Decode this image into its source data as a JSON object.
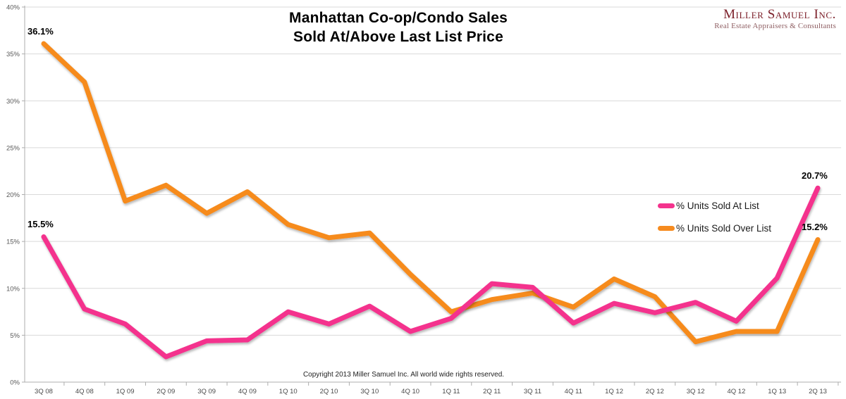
{
  "header": {
    "title_line1": "Manhattan Co-op/Condo Sales",
    "title_line2": "Sold At/Above Last List Price",
    "logo_name": "Miller Samuel Inc.",
    "logo_tagline": "Real Estate Appraisers & Consultants",
    "logo_color": "#7B1E28"
  },
  "legend": {
    "items": [
      {
        "label": "% Units Sold At List",
        "color": "#F4338D"
      },
      {
        "label": "% Units Sold Over List",
        "color": "#F68B1F"
      }
    ]
  },
  "annotations": [
    {
      "text": "36.1%",
      "series": 1,
      "point": 0
    },
    {
      "text": "15.5%",
      "series": 0,
      "point": 0
    },
    {
      "text": "20.7%",
      "series": 0,
      "point": 19
    },
    {
      "text": "15.2%",
      "series": 1,
      "point": 19
    }
  ],
  "footer": {
    "copyright": "Copyright 2013 Miller Samuel Inc.  All world wide rights reserved."
  },
  "chart_data": {
    "type": "line",
    "title": "Manhattan Co-op/Condo Sales Sold At/Above Last List Price",
    "categories": [
      "3Q 08",
      "4Q 08",
      "1Q 09",
      "2Q 09",
      "3Q 09",
      "4Q 09",
      "1Q 10",
      "2Q 10",
      "3Q 10",
      "4Q 10",
      "1Q 11",
      "2Q 11",
      "3Q 11",
      "4Q 11",
      "1Q 12",
      "2Q 12",
      "3Q 12",
      "4Q 12",
      "1Q 13",
      "2Q 13"
    ],
    "series": [
      {
        "name": "% Units Sold At List",
        "color": "#F4338D",
        "values": [
          15.5,
          7.8,
          6.2,
          2.7,
          4.4,
          4.5,
          7.5,
          6.2,
          8.1,
          5.4,
          6.8,
          10.5,
          10.1,
          6.3,
          8.4,
          7.4,
          8.5,
          6.5,
          11.1,
          20.7
        ]
      },
      {
        "name": "% Units Sold Over List",
        "color": "#F68B1F",
        "values": [
          36.1,
          32.0,
          19.3,
          21.0,
          18.0,
          20.3,
          16.8,
          15.4,
          15.9,
          11.5,
          7.5,
          8.8,
          9.5,
          8.0,
          11.0,
          9.1,
          4.3,
          5.4,
          5.4,
          15.2
        ]
      }
    ],
    "xlabel": "",
    "ylabel": "",
    "ylim": [
      0,
      40
    ],
    "y_tick_step": 5,
    "y_tick_format": "percent",
    "grid": true,
    "legend_position": "middle-right",
    "axis_label_color": "#595959",
    "gridline_color": "#D9D9D9",
    "axis_line_color": "#ADADAD"
  }
}
